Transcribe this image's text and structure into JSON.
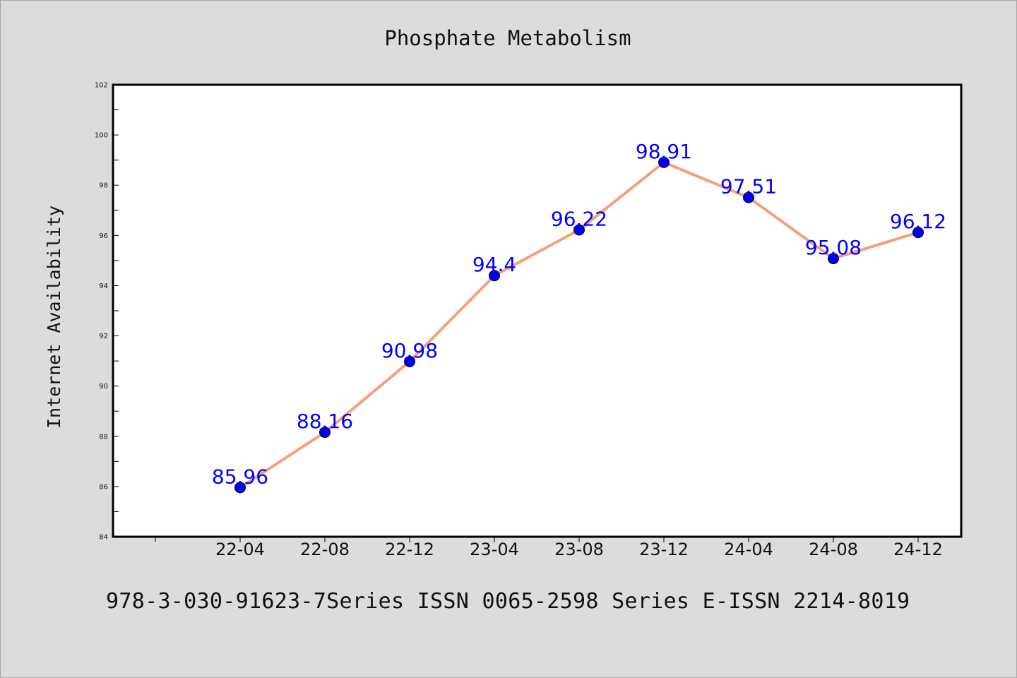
{
  "chart_data": {
    "type": "line",
    "title": "Phosphate Metabolism",
    "xlabel": "",
    "ylabel": "Internet Availability",
    "categories": [
      "22-04",
      "22-08",
      "22-12",
      "23-04",
      "23-08",
      "23-12",
      "24-04",
      "24-08",
      "24-12"
    ],
    "values": [
      85.96,
      88.16,
      90.98,
      94.4,
      96.22,
      98.91,
      97.51,
      95.08,
      96.12
    ],
    "data_labels": [
      "85.96",
      "88.16",
      "90.98",
      "94.4",
      "96.22",
      "98.91",
      "97.51",
      "95.08",
      "96.12"
    ],
    "ylim": [
      84,
      102
    ],
    "yticks": [
      84,
      86,
      88,
      90,
      92,
      94,
      96,
      98,
      100,
      102
    ],
    "grid": false,
    "legend": "none",
    "line_color": "#f4a07c",
    "marker_color": "#0000ee",
    "label_color": "#0000ff"
  },
  "footer": {
    "text": "978-3-030-91623-7Series ISSN 0065-2598 Series E-ISSN 2214-8019"
  }
}
